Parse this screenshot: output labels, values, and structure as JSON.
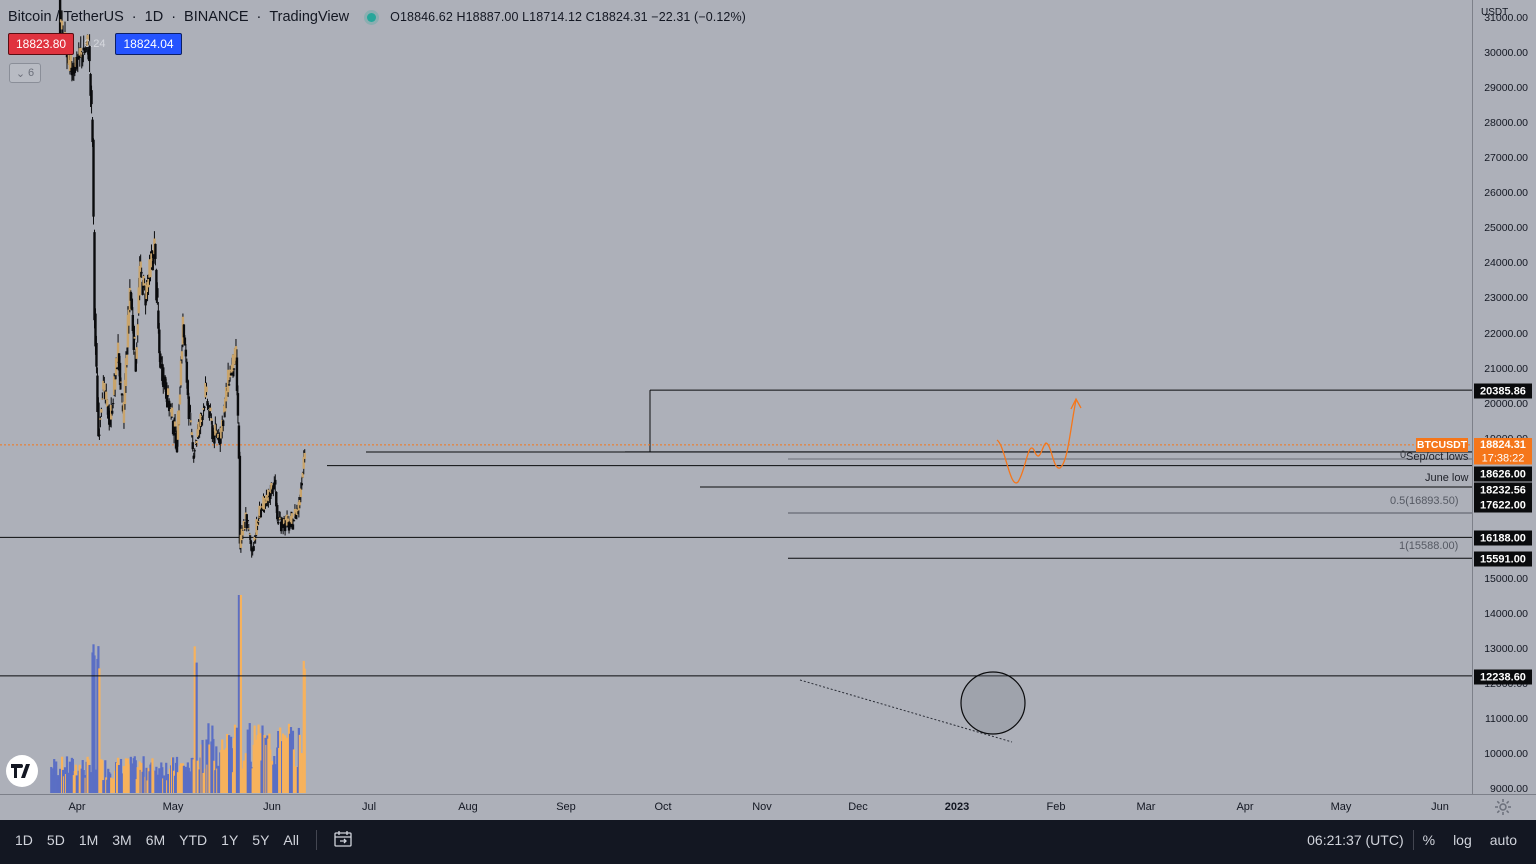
{
  "header": {
    "symbol": "Bitcoin / TetherUS",
    "interval": "1D",
    "exchange": "BINANCE",
    "source": "TradingView",
    "ohlc": "O18846.62  H18887.00  L18714.12  C18824.31  −22.31  (−0.12%)"
  },
  "quote": {
    "bid": "18823.80",
    "spread": "0.24",
    "ask": "18824.04"
  },
  "indicator_collapse": {
    "count": "6"
  },
  "price_scale": {
    "currency": "USDT",
    "ticks": [
      "31000.00",
      "30000.00",
      "29000.00",
      "28000.00",
      "27000.00",
      "26000.00",
      "25000.00",
      "24000.00",
      "23000.00",
      "22000.00",
      "21000.00",
      "20000.00",
      "19000.00",
      "15000.00",
      "14000.00",
      "13000.00",
      "12000.00",
      "11000.00",
      "10000.00",
      "9000.00"
    ],
    "last_price_label": "BTCUSDT",
    "last_price": "18824.31",
    "countdown": "17:38:22",
    "level_labels": [
      "20385.86",
      "18626.00",
      "18232.56",
      "17622.00",
      "16188.00",
      "15591.00",
      "12238.60"
    ]
  },
  "annotations": {
    "sep_oct": "Sep/oct lows",
    "fib0": "0",
    "june_low": "June low",
    "fib05": "0.5(16893.50)",
    "fib1": "1(15588.00)"
  },
  "time_axis": {
    "labels": [
      "Apr",
      "May",
      "Jun",
      "Jul",
      "Aug",
      "Sep",
      "Oct",
      "Nov",
      "Dec",
      "2023",
      "Feb",
      "Mar",
      "Apr",
      "May",
      "Jun"
    ]
  },
  "bottom_bar": {
    "ranges": [
      "1D",
      "5D",
      "1M",
      "3M",
      "6M",
      "YTD",
      "1Y",
      "5Y",
      "All"
    ],
    "clock": "06:21:37 (UTC)",
    "percent": "%",
    "log": "log",
    "auto": "auto"
  },
  "colors": {
    "up_volume": "#f7b25c",
    "down_volume": "#5b6fc4",
    "projection": "#f5761a",
    "last_price": "#f5761a",
    "bid": "#e0333f",
    "ask": "#2453ff"
  },
  "chart_data": {
    "type": "candlestick",
    "title": "Bitcoin / TetherUS",
    "interval": "1D",
    "x_range": [
      "2022-03-20",
      "2023-06-30"
    ],
    "y_range": [
      8800,
      31500
    ],
    "grid": false,
    "price_path": [
      {
        "date": "2022-05-01",
        "close": 38500
      },
      {
        "date": "2022-05-10",
        "close": 30800
      },
      {
        "date": "2022-05-20",
        "close": 29500
      },
      {
        "date": "2022-06-01",
        "close": 30000
      },
      {
        "date": "2022-06-08",
        "close": 30200
      },
      {
        "date": "2022-06-12",
        "close": 27500
      },
      {
        "date": "2022-06-14",
        "close": 22500
      },
      {
        "date": "2022-06-18",
        "close": 19100
      },
      {
        "date": "2022-06-22",
        "close": 20500
      },
      {
        "date": "2022-06-30",
        "close": 19500
      },
      {
        "date": "2022-07-08",
        "close": 21500
      },
      {
        "date": "2022-07-13",
        "close": 19500
      },
      {
        "date": "2022-07-20",
        "close": 23300
      },
      {
        "date": "2022-07-26",
        "close": 21200
      },
      {
        "date": "2022-07-30",
        "close": 23800
      },
      {
        "date": "2022-08-05",
        "close": 23100
      },
      {
        "date": "2022-08-14",
        "close": 24500
      },
      {
        "date": "2022-08-19",
        "close": 21400
      },
      {
        "date": "2022-08-28",
        "close": 20100
      },
      {
        "date": "2022-09-06",
        "close": 18900
      },
      {
        "date": "2022-09-12",
        "close": 22300
      },
      {
        "date": "2022-09-19",
        "close": 19500
      },
      {
        "date": "2022-09-22",
        "close": 18600
      },
      {
        "date": "2022-09-30",
        "close": 19500
      },
      {
        "date": "2022-10-05",
        "close": 20300
      },
      {
        "date": "2022-10-13",
        "close": 19100
      },
      {
        "date": "2022-10-20",
        "close": 19100
      },
      {
        "date": "2022-10-29",
        "close": 20800
      },
      {
        "date": "2022-11-05",
        "close": 21300
      },
      {
        "date": "2022-11-08",
        "close": 18500
      },
      {
        "date": "2022-11-09",
        "close": 15900
      },
      {
        "date": "2022-11-15",
        "close": 16800
      },
      {
        "date": "2022-11-21",
        "close": 15800
      },
      {
        "date": "2022-11-30",
        "close": 17000
      },
      {
        "date": "2022-12-05",
        "close": 17100
      },
      {
        "date": "2022-12-14",
        "close": 17800
      },
      {
        "date": "2022-12-17",
        "close": 16700
      },
      {
        "date": "2022-12-31",
        "close": 16540
      },
      {
        "date": "2023-01-08",
        "close": 17100
      },
      {
        "date": "2023-01-12",
        "close": 18200
      },
      {
        "date": "2023-01-14",
        "close": 18824.31
      }
    ],
    "volume_peaks": [
      {
        "date": "2022-06-13",
        "level": "high"
      },
      {
        "date": "2022-06-18",
        "level": "high"
      },
      {
        "date": "2022-09-25",
        "level": "high"
      },
      {
        "date": "2022-11-09",
        "level": "highest"
      },
      {
        "date": "2023-01-14",
        "level": "high"
      }
    ],
    "levels": [
      {
        "price": 20385.86,
        "label": "20385.86"
      },
      {
        "price": 18626.0,
        "label": "18626.00"
      },
      {
        "price": 18232.56,
        "label": "18232.56"
      },
      {
        "price": 17622.0,
        "label": "17622.00"
      },
      {
        "price": 16188.0,
        "label": "16188.00"
      },
      {
        "price": 15591.0,
        "label": "15591.00"
      },
      {
        "price": 12238.6,
        "label": "12238.60"
      }
    ],
    "last_price": 18824.31
  }
}
